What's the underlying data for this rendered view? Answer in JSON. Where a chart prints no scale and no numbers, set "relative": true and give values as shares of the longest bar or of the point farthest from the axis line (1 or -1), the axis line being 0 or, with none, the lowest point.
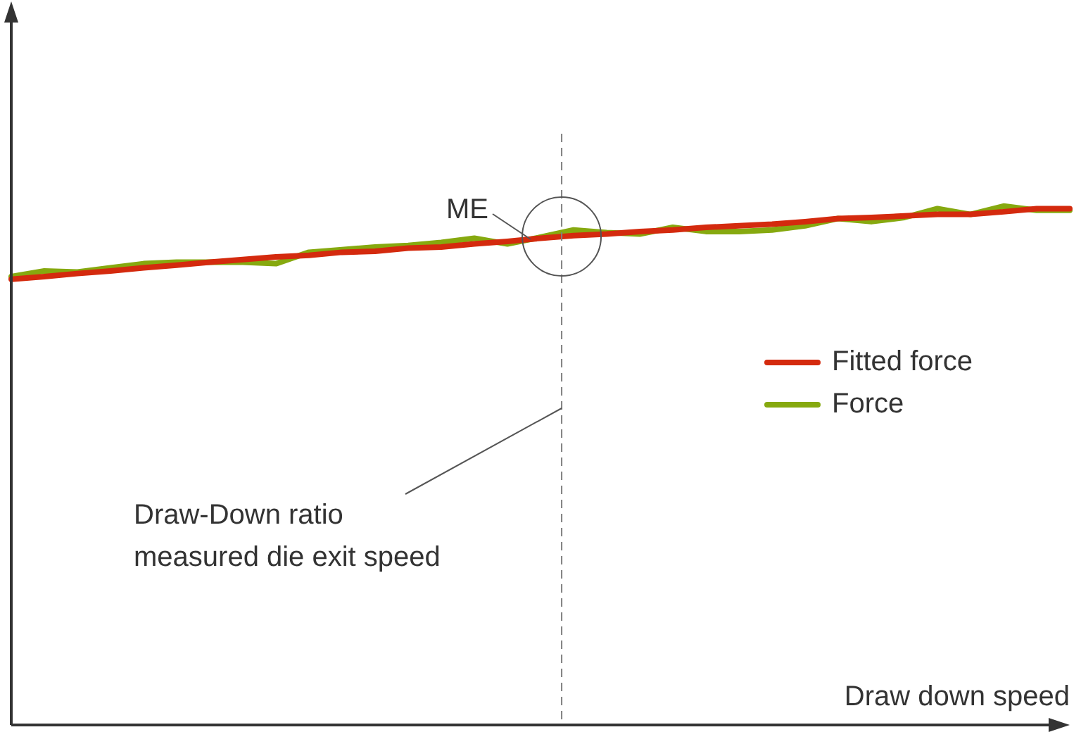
{
  "chart_data": {
    "type": "line",
    "relative": true,
    "xlabel": "Draw down speed",
    "grid": false,
    "legend": "right",
    "marker": "none",
    "line_style": "solid",
    "categories": [
      null,
      null,
      null,
      null,
      null,
      null,
      null,
      null,
      null,
      null,
      null,
      null,
      null,
      null,
      null,
      null,
      null,
      null,
      null,
      null,
      null,
      null,
      null,
      null,
      null,
      null,
      null,
      null,
      null,
      null,
      null,
      null,
      null
    ],
    "series": [
      {
        "name": "Fitted force",
        "color": "#d42a0e",
        "values": [
          0.859,
          0.864,
          0.87,
          0.875,
          0.881,
          0.886,
          0.892,
          0.897,
          0.902,
          0.905,
          0.911,
          0.913,
          0.919,
          0.921,
          0.927,
          0.932,
          0.938,
          0.943,
          0.946,
          0.951,
          0.954,
          0.959,
          0.962,
          0.965,
          0.97,
          0.976,
          0.978,
          0.981,
          0.984,
          0.984,
          0.989,
          0.995,
          0.995
        ]
      },
      {
        "name": "Force",
        "color": "#86a90f",
        "values": [
          0.864,
          0.875,
          0.873,
          0.881,
          0.889,
          0.892,
          0.892,
          0.892,
          0.889,
          0.911,
          0.916,
          0.921,
          0.924,
          0.93,
          0.938,
          0.927,
          0.94,
          0.954,
          0.949,
          0.946,
          0.959,
          0.951,
          0.951,
          0.954,
          0.962,
          0.976,
          0.97,
          0.978,
          0.995,
          0.984,
          1,
          0.992,
          0.992
        ]
      }
    ],
    "annotations": [
      "ME",
      "Draw-Down ratio\nmeasured die exit speed"
    ]
  }
}
